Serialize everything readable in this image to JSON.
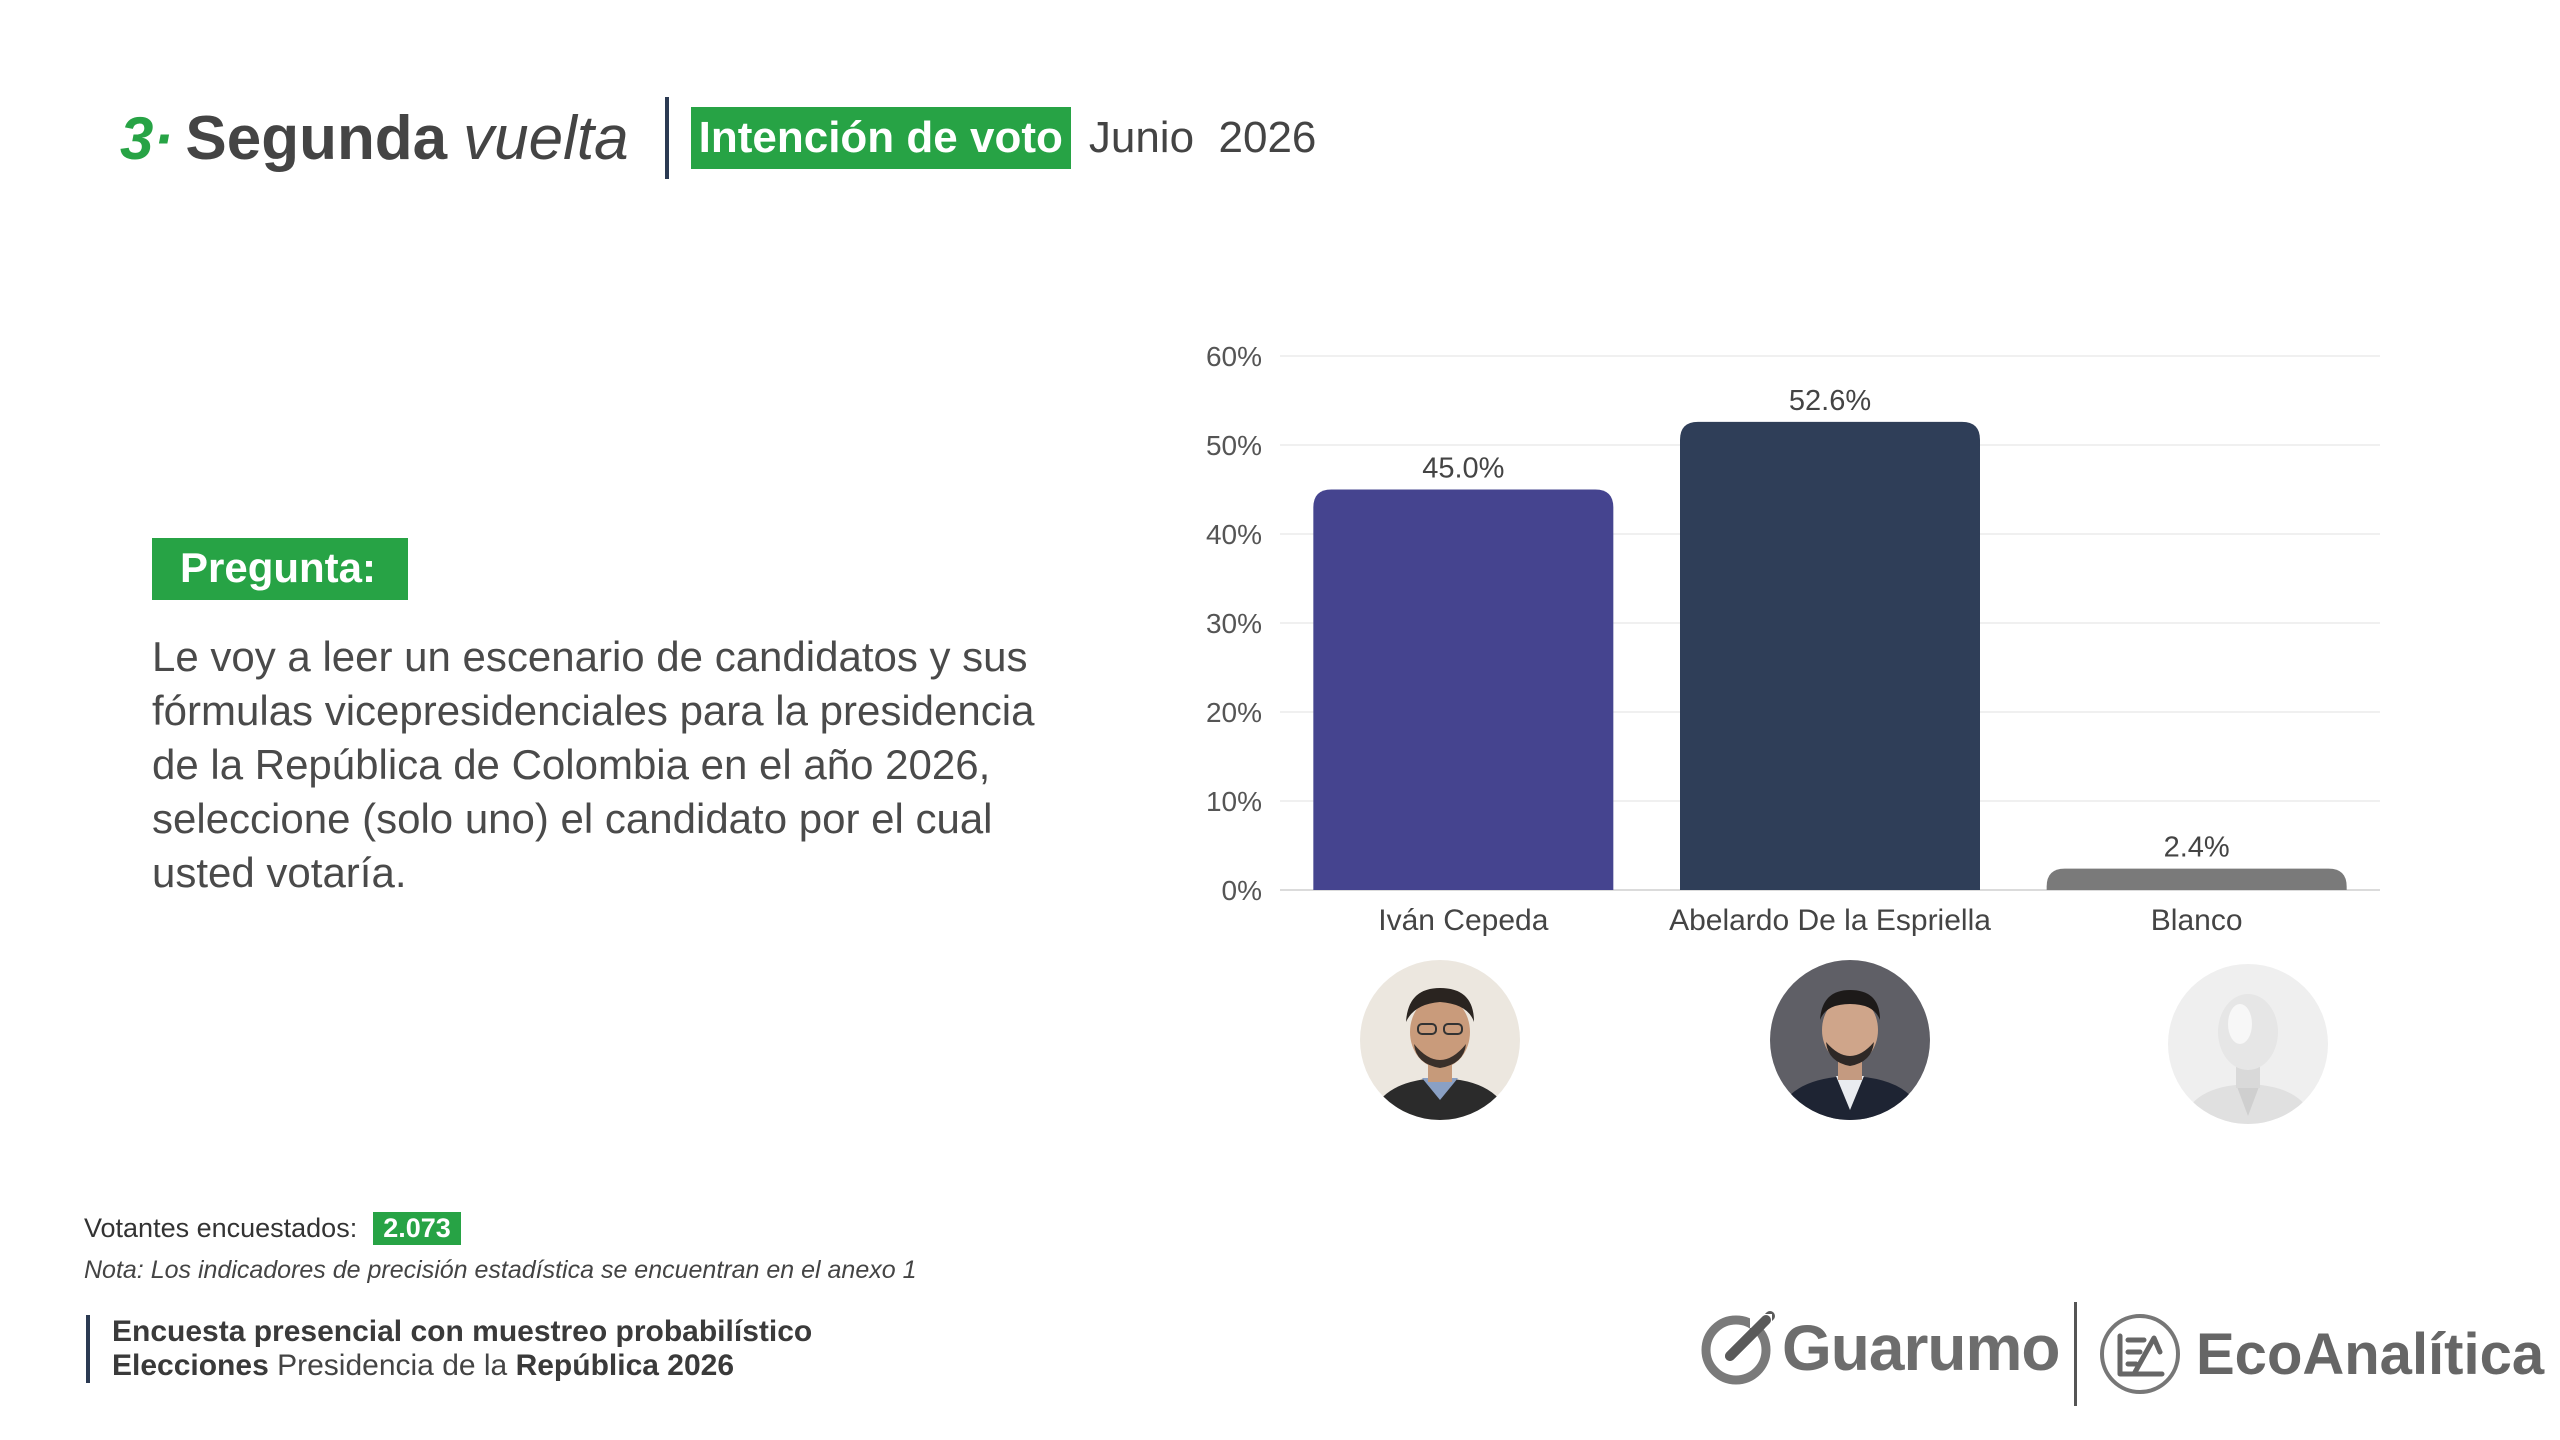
{
  "header": {
    "section_number": "3·",
    "title_bold": "Segunda",
    "title_italic": "vuelta",
    "badge": "Intención de voto",
    "date": "Junio  2026"
  },
  "question": {
    "label": "Pregunta:",
    "text": "Le voy a leer un escenario de candidatos y sus fórmulas vicepresidenciales para la presidencia de la República de Colombia en el año 2026, seleccione (solo uno) el candidato por el cual usted votaría."
  },
  "chart_data": {
    "type": "bar",
    "title": "",
    "xlabel": "",
    "ylabel": "",
    "categories": [
      "Iván Cepeda",
      "Abelardo De la Espriella",
      "Blanco"
    ],
    "values": [
      45.0,
      52.6,
      2.4
    ],
    "value_labels": [
      "45.0%",
      "52.6%",
      "2.4%"
    ],
    "colors": [
      "#45448f",
      "#2f3e58",
      "#7a7a7a"
    ],
    "ylim": [
      0,
      60
    ],
    "yticks": [
      0,
      10,
      20,
      30,
      40,
      50,
      60
    ],
    "ytick_labels": [
      "0%",
      "10%",
      "20%",
      "30%",
      "40%",
      "50%",
      "60%"
    ],
    "grid": true,
    "legend": "none"
  },
  "avatars": [
    "person-photo-icon",
    "person-photo-icon",
    "mannequin-icon"
  ],
  "footer": {
    "sample_label": "Votantes encuestados:",
    "sample_value": "2.073",
    "note": "Nota: Los indicadores de precisión estadística se encuentran en el anexo 1",
    "method_line1": "Encuesta presencial con muestreo probabilístico",
    "method_line2_bold1": "Elecciones",
    "method_line2_regular": " Presidencia de la ",
    "method_line2_bold2": "República 2026"
  },
  "logos": {
    "guarumo": "Guarumo",
    "ecoanalitica": "EcoAnalítica"
  },
  "colors": {
    "accent_green": "#27a345",
    "navy": "#2b3a52"
  }
}
